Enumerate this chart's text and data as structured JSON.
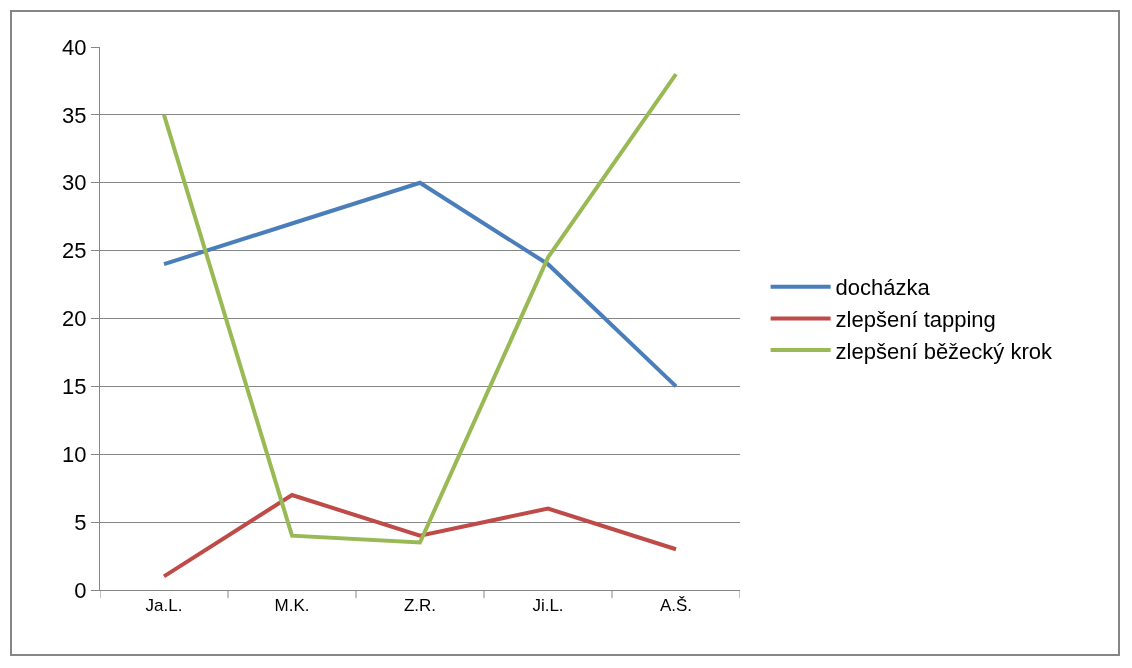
{
  "chart_data": {
    "type": "line",
    "categories": [
      "Ja.L.",
      "M.K.",
      "Z.R.",
      "Ji.L.",
      "A.Š."
    ],
    "series": [
      {
        "name": "docházka",
        "color": "#4a7ebb",
        "values": [
          24,
          27,
          30,
          24,
          15
        ]
      },
      {
        "name": "zlepšení tapping",
        "color": "#be4b48",
        "values": [
          1,
          7,
          4,
          6,
          3
        ]
      },
      {
        "name": "zlepšení běžecký krok",
        "color": "#98b954",
        "values": [
          35,
          4,
          3.5,
          24.5,
          38
        ]
      }
    ],
    "ylim": [
      0,
      40
    ],
    "yticks": [
      0,
      5,
      10,
      15,
      20,
      25,
      30,
      35,
      40
    ],
    "grid": "y",
    "legend": "right",
    "marker": "none",
    "line_style": "solid"
  }
}
